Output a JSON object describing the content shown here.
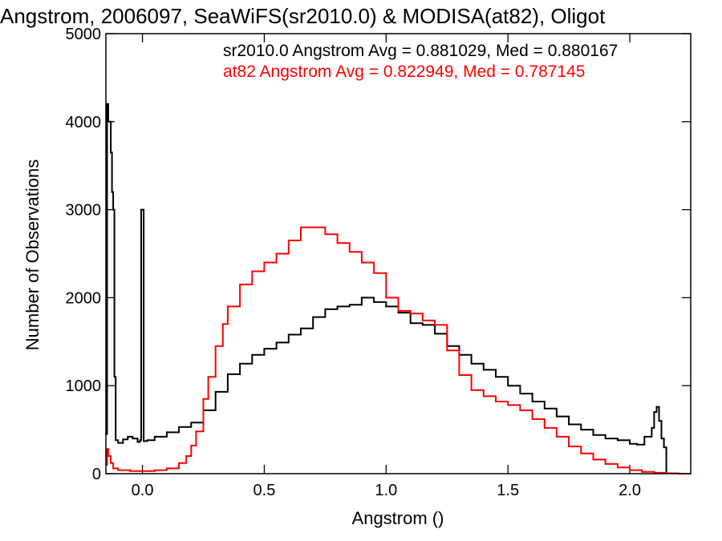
{
  "chart_data": {
    "type": "line",
    "title": "Angstrom, 2006097, SeaWiFS(sr2010.0) & MODISA(at82), Oligot",
    "xlabel": "Angstrom ()",
    "ylabel": "Number of Observations",
    "xlim": [
      -0.15,
      2.25
    ],
    "ylim": [
      0,
      5000
    ],
    "x_ticks": [
      0.0,
      0.5,
      1.0,
      1.5,
      2.0
    ],
    "x_tick_labels": [
      "0.0",
      "0.5",
      "1.0",
      "1.5",
      "2.0"
    ],
    "y_ticks": [
      0,
      1000,
      2000,
      3000,
      4000,
      5000
    ],
    "y_tick_labels": [
      "0",
      "1000",
      "2000",
      "3000",
      "4000",
      "5000"
    ],
    "grid": false,
    "annotations": [
      {
        "text": "sr2010.0 Angstrom Avg = 0.881029, Med = 0.880167",
        "color": "#000000"
      },
      {
        "text": "at82 Angstrom Avg = 0.822949, Med = 0.787145",
        "color": "#ff0000"
      }
    ],
    "series": [
      {
        "color": "#000000",
        "points": [
          [
            -0.15,
            450
          ],
          [
            -0.145,
            4200
          ],
          [
            -0.14,
            4000
          ],
          [
            -0.13,
            3650
          ],
          [
            -0.125,
            3200
          ],
          [
            -0.12,
            3000
          ],
          [
            -0.115,
            1100
          ],
          [
            -0.11,
            380
          ],
          [
            -0.1,
            350
          ],
          [
            -0.08,
            390
          ],
          [
            -0.06,
            420
          ],
          [
            -0.04,
            400
          ],
          [
            -0.02,
            360
          ],
          [
            -0.01,
            380
          ],
          [
            -0.005,
            3000
          ],
          [
            0.0,
            3000
          ],
          [
            0.005,
            370
          ],
          [
            0.02,
            380
          ],
          [
            0.05,
            420
          ],
          [
            0.1,
            470
          ],
          [
            0.15,
            530
          ],
          [
            0.2,
            580
          ],
          [
            0.25,
            720
          ],
          [
            0.3,
            930
          ],
          [
            0.35,
            1130
          ],
          [
            0.4,
            1250
          ],
          [
            0.45,
            1350
          ],
          [
            0.5,
            1420
          ],
          [
            0.55,
            1490
          ],
          [
            0.6,
            1580
          ],
          [
            0.65,
            1650
          ],
          [
            0.7,
            1780
          ],
          [
            0.75,
            1870
          ],
          [
            0.8,
            1900
          ],
          [
            0.85,
            1920
          ],
          [
            0.9,
            2000
          ],
          [
            0.95,
            1950
          ],
          [
            1.0,
            1900
          ],
          [
            1.05,
            1830
          ],
          [
            1.1,
            1710
          ],
          [
            1.15,
            1690
          ],
          [
            1.2,
            1590
          ],
          [
            1.25,
            1450
          ],
          [
            1.3,
            1350
          ],
          [
            1.35,
            1250
          ],
          [
            1.4,
            1180
          ],
          [
            1.45,
            1100
          ],
          [
            1.5,
            1000
          ],
          [
            1.55,
            910
          ],
          [
            1.6,
            820
          ],
          [
            1.65,
            740
          ],
          [
            1.7,
            650
          ],
          [
            1.75,
            560
          ],
          [
            1.8,
            500
          ],
          [
            1.85,
            440
          ],
          [
            1.9,
            400
          ],
          [
            1.95,
            380
          ],
          [
            2.0,
            340
          ],
          [
            2.03,
            330
          ],
          [
            2.06,
            420
          ],
          [
            2.09,
            520
          ],
          [
            2.1,
            700
          ],
          [
            2.11,
            760
          ],
          [
            2.12,
            600
          ],
          [
            2.13,
            400
          ],
          [
            2.14,
            300
          ],
          [
            2.15,
            0
          ]
        ]
      },
      {
        "color": "#ff0000",
        "points": [
          [
            -0.15,
            100
          ],
          [
            -0.145,
            280
          ],
          [
            -0.14,
            200
          ],
          [
            -0.13,
            120
          ],
          [
            -0.12,
            60
          ],
          [
            -0.1,
            40
          ],
          [
            -0.05,
            30
          ],
          [
            0.0,
            30
          ],
          [
            0.05,
            40
          ],
          [
            0.1,
            60
          ],
          [
            0.15,
            120
          ],
          [
            0.18,
            200
          ],
          [
            0.2,
            320
          ],
          [
            0.22,
            480
          ],
          [
            0.25,
            850
          ],
          [
            0.27,
            1100
          ],
          [
            0.3,
            1450
          ],
          [
            0.33,
            1700
          ],
          [
            0.35,
            1900
          ],
          [
            0.4,
            2150
          ],
          [
            0.45,
            2300
          ],
          [
            0.5,
            2400
          ],
          [
            0.55,
            2500
          ],
          [
            0.6,
            2650
          ],
          [
            0.65,
            2800
          ],
          [
            0.7,
            2800
          ],
          [
            0.75,
            2720
          ],
          [
            0.8,
            2620
          ],
          [
            0.85,
            2520
          ],
          [
            0.9,
            2400
          ],
          [
            0.95,
            2280
          ],
          [
            1.0,
            2000
          ],
          [
            1.05,
            1850
          ],
          [
            1.1,
            1820
          ],
          [
            1.15,
            1740
          ],
          [
            1.2,
            1690
          ],
          [
            1.25,
            1400
          ],
          [
            1.3,
            1120
          ],
          [
            1.35,
            950
          ],
          [
            1.4,
            880
          ],
          [
            1.45,
            820
          ],
          [
            1.5,
            780
          ],
          [
            1.55,
            720
          ],
          [
            1.6,
            620
          ],
          [
            1.65,
            520
          ],
          [
            1.7,
            420
          ],
          [
            1.75,
            310
          ],
          [
            1.8,
            230
          ],
          [
            1.85,
            160
          ],
          [
            1.9,
            110
          ],
          [
            1.95,
            70
          ],
          [
            2.0,
            40
          ],
          [
            2.05,
            20
          ],
          [
            2.1,
            10
          ],
          [
            2.15,
            5
          ],
          [
            2.2,
            0
          ],
          [
            2.25,
            0
          ]
        ]
      }
    ]
  }
}
